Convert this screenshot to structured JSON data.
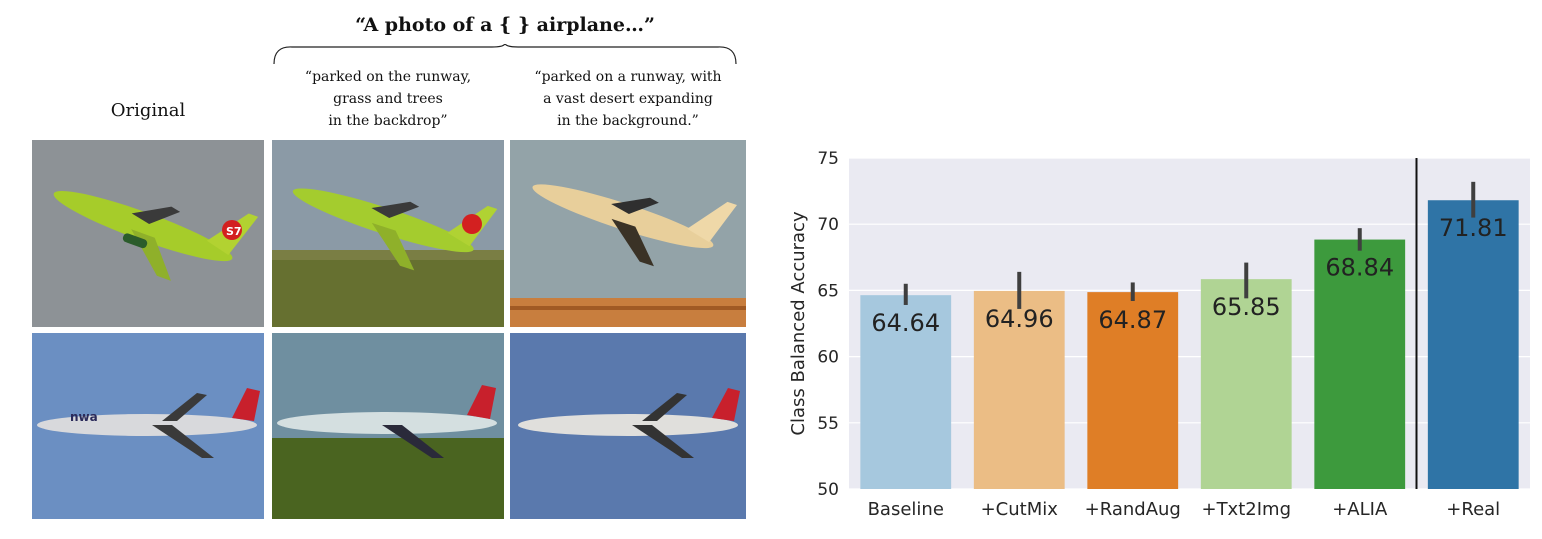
{
  "figure": {
    "prompt_title": "“A photo of a { } airplane…”",
    "original_label": "Original",
    "prompt_runway": [
      "“parked on the runway,",
      "grass and trees",
      "in the backdrop”"
    ],
    "prompt_desert": [
      "“parked on a runway, with",
      "a vast desert expanding",
      "in the background.”"
    ],
    "image_grid": [
      {
        "row": 1,
        "airline_logo": "S7",
        "livery": "green"
      },
      {
        "row": 2,
        "airline_logo": "nwa",
        "livery": "silver"
      }
    ]
  },
  "chart_data": {
    "type": "bar",
    "categories": [
      "Baseline",
      "+CutMix",
      "+RandAug",
      "+Txt2Img",
      "+ALIA",
      "+Real"
    ],
    "values": [
      64.64,
      64.96,
      64.87,
      65.85,
      68.84,
      71.81
    ],
    "error_low": [
      63.9,
      63.6,
      64.2,
      64.4,
      68.0,
      70.5
    ],
    "error_high": [
      65.5,
      66.4,
      65.6,
      67.1,
      69.7,
      73.2
    ],
    "data_labels": [
      "64.64",
      "64.96",
      "64.87",
      "65.85",
      "68.84",
      "71.81"
    ],
    "colors": [
      "#a6c8de",
      "#ebbd85",
      "#df7e26",
      "#b0d494",
      "#3d9a3d",
      "#2f74a6"
    ],
    "ylabel": "Class Balanced Accuracy",
    "xlabel": "",
    "ylim": [
      50,
      75
    ],
    "yticks": [
      50,
      55,
      60,
      65,
      70,
      75
    ],
    "grid": true,
    "background": "#eaeaf2",
    "separator_before": "+Real"
  }
}
